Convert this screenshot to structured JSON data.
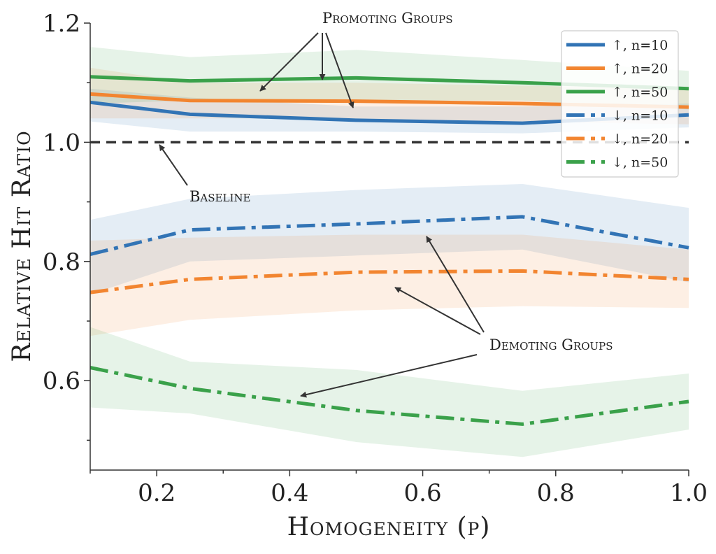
{
  "chart_data": {
    "type": "line",
    "title": "",
    "xlabel": "Homogeneity (p)",
    "ylabel": "Relative Hit Ratio",
    "xlim": [
      0.1,
      1.0
    ],
    "ylim": [
      0.45,
      1.2
    ],
    "xticks": [
      0.2,
      0.4,
      0.6,
      0.8,
      1.0
    ],
    "xtick_labels": [
      "0.2",
      "0.4",
      "0.6",
      "0.8",
      "1.0"
    ],
    "yticks": [
      0.6,
      0.8,
      1.0,
      1.2
    ],
    "ytick_labels": [
      "0.6",
      "0.8",
      "1.0",
      "1.2"
    ],
    "x": [
      0.1,
      0.25,
      0.5,
      0.75,
      1.0
    ],
    "baseline": {
      "value": 1.0,
      "label": "Baseline"
    },
    "series": [
      {
        "name": "↑, n=10",
        "color": "#3274b5",
        "style": "solid",
        "values": [
          1.067,
          1.047,
          1.037,
          1.032,
          1.046
        ],
        "lower": [
          1.035,
          1.018,
          1.018,
          1.015,
          1.025
        ],
        "upper": [
          1.09,
          1.075,
          1.06,
          1.06,
          1.065
        ]
      },
      {
        "name": "↑, n=20",
        "color": "#f28530",
        "style": "solid",
        "values": [
          1.081,
          1.07,
          1.069,
          1.065,
          1.059
        ],
        "lower": [
          1.04,
          1.04,
          1.04,
          1.035,
          1.03
        ],
        "upper": [
          1.125,
          1.1,
          1.1,
          1.095,
          1.09
        ]
      },
      {
        "name": "↑, n=50",
        "color": "#3aa14a",
        "style": "solid",
        "values": [
          1.11,
          1.103,
          1.108,
          1.1,
          1.09
        ],
        "lower": [
          1.065,
          1.07,
          1.07,
          1.07,
          1.055
        ],
        "upper": [
          1.16,
          1.143,
          1.155,
          1.138,
          1.12
        ]
      },
      {
        "name": "↓, n=10",
        "color": "#3274b5",
        "style": "dashdot",
        "values": [
          0.812,
          0.853,
          0.863,
          0.875,
          0.823
        ],
        "lower": [
          0.745,
          0.8,
          0.81,
          0.82,
          0.765
        ],
        "upper": [
          0.87,
          0.905,
          0.92,
          0.93,
          0.89
        ]
      },
      {
        "name": "↓, n=20",
        "color": "#f28530",
        "style": "dashdot",
        "values": [
          0.748,
          0.77,
          0.782,
          0.784,
          0.77
        ],
        "lower": [
          0.675,
          0.702,
          0.718,
          0.725,
          0.722
        ],
        "upper": [
          0.835,
          0.84,
          0.845,
          0.845,
          0.82
        ]
      },
      {
        "name": "↓, n=50",
        "color": "#3aa14a",
        "style": "dashdot",
        "values": [
          0.622,
          0.587,
          0.55,
          0.527,
          0.565
        ],
        "lower": [
          0.555,
          0.545,
          0.497,
          0.472,
          0.518
        ],
        "upper": [
          0.69,
          0.632,
          0.618,
          0.583,
          0.612
        ]
      }
    ],
    "annotations": [
      {
        "text": "Promoting Groups"
      },
      {
        "text": "Demoting Groups"
      }
    ],
    "legend_position": "top-right"
  }
}
